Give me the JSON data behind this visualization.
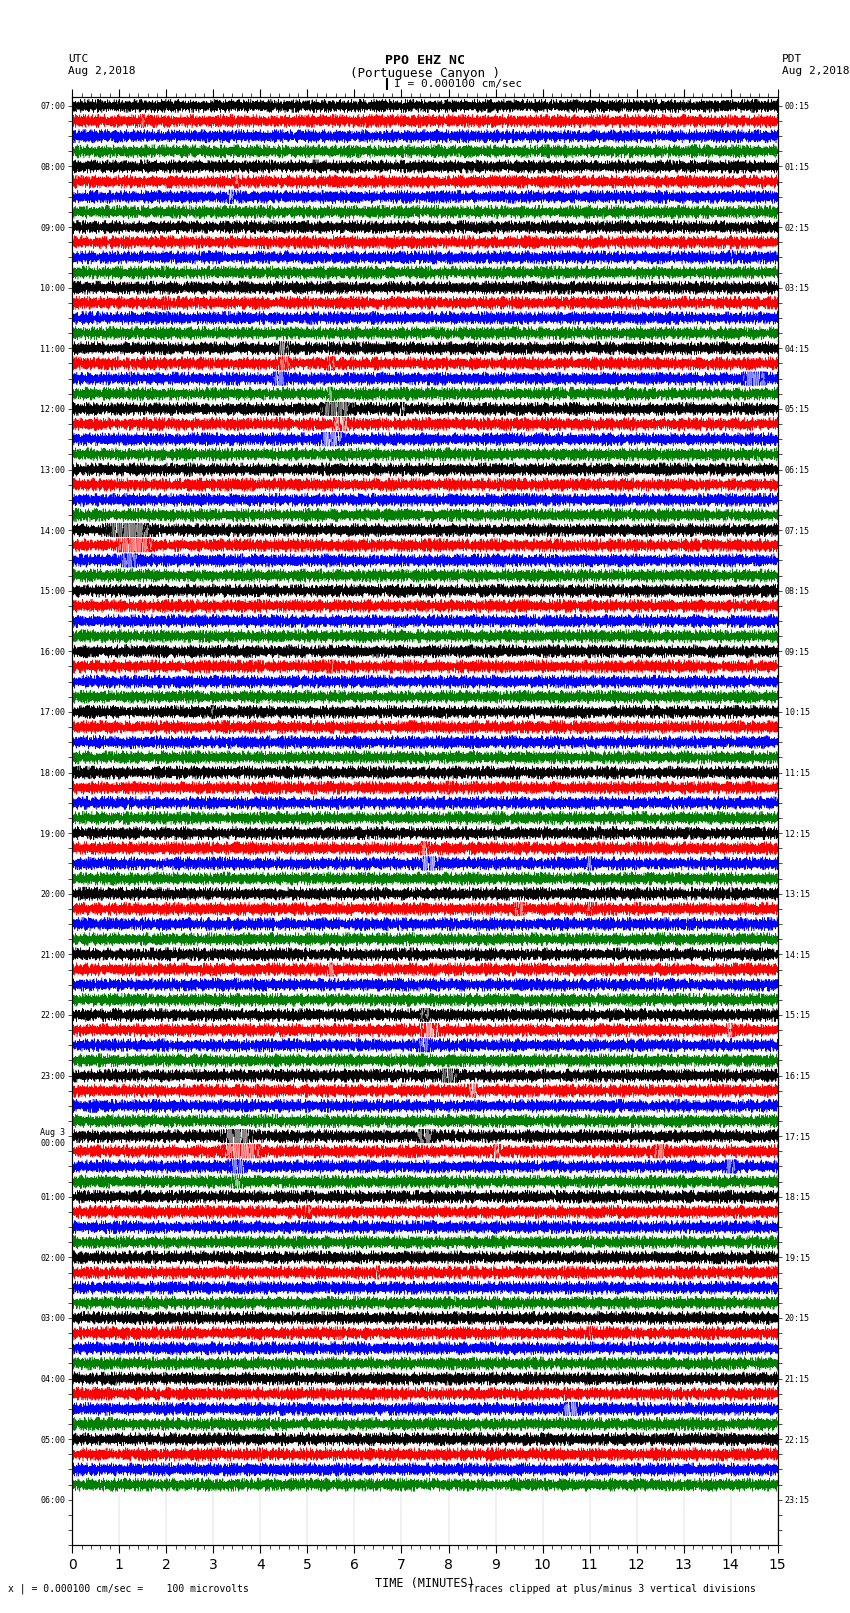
{
  "title_line1": "PPO EHZ NC",
  "title_line2": "(Portuguese Canyon )",
  "title_line3": "I = 0.000100 cm/sec",
  "left_label_top": "UTC",
  "left_label_date": "Aug 2,2018",
  "right_label_top": "PDT",
  "right_label_date": "Aug 2,2018",
  "bottom_label": "TIME (MINUTES)",
  "bottom_note_left": "x | = 0.000100 cm/sec =    100 microvolts",
  "bottom_note_right": "Traces clipped at plus/minus 3 vertical divisions",
  "utc_times": [
    "07:00",
    "",
    "",
    "",
    "08:00",
    "",
    "",
    "",
    "09:00",
    "",
    "",
    "",
    "10:00",
    "",
    "",
    "",
    "11:00",
    "",
    "",
    "",
    "12:00",
    "",
    "",
    "",
    "13:00",
    "",
    "",
    "",
    "14:00",
    "",
    "",
    "",
    "15:00",
    "",
    "",
    "",
    "16:00",
    "",
    "",
    "",
    "17:00",
    "",
    "",
    "",
    "18:00",
    "",
    "",
    "",
    "19:00",
    "",
    "",
    "",
    "20:00",
    "",
    "",
    "",
    "21:00",
    "",
    "",
    "",
    "22:00",
    "",
    "",
    "",
    "23:00",
    "",
    "",
    "",
    "Aug 3\n00:00",
    "",
    "",
    "",
    "01:00",
    "",
    "",
    "",
    "02:00",
    "",
    "",
    "",
    "03:00",
    "",
    "",
    "",
    "04:00",
    "",
    "",
    "",
    "05:00",
    "",
    "",
    "",
    "06:00",
    "",
    "",
    ""
  ],
  "pdt_times": [
    "00:15",
    "",
    "",
    "",
    "01:15",
    "",
    "",
    "",
    "02:15",
    "",
    "",
    "",
    "03:15",
    "",
    "",
    "",
    "04:15",
    "",
    "",
    "",
    "05:15",
    "",
    "",
    "",
    "06:15",
    "",
    "",
    "",
    "07:15",
    "",
    "",
    "",
    "08:15",
    "",
    "",
    "",
    "09:15",
    "",
    "",
    "",
    "10:15",
    "",
    "",
    "",
    "11:15",
    "",
    "",
    "",
    "12:15",
    "",
    "",
    "",
    "13:15",
    "",
    "",
    "",
    "14:15",
    "",
    "",
    "",
    "15:15",
    "",
    "",
    "",
    "16:15",
    "",
    "",
    "",
    "17:15",
    "",
    "",
    "",
    "18:15",
    "",
    "",
    "",
    "19:15",
    "",
    "",
    "",
    "20:15",
    "",
    "",
    "",
    "21:15",
    "",
    "",
    "",
    "22:15",
    "",
    "",
    "",
    "23:15",
    "",
    "",
    ""
  ],
  "trace_color_cycle": [
    "black",
    "red",
    "blue",
    "green"
  ],
  "n_rows": 92,
  "n_minutes": 15,
  "fig_width": 8.5,
  "fig_height": 16.13,
  "background_color": "#ffffff",
  "seed": 12345
}
